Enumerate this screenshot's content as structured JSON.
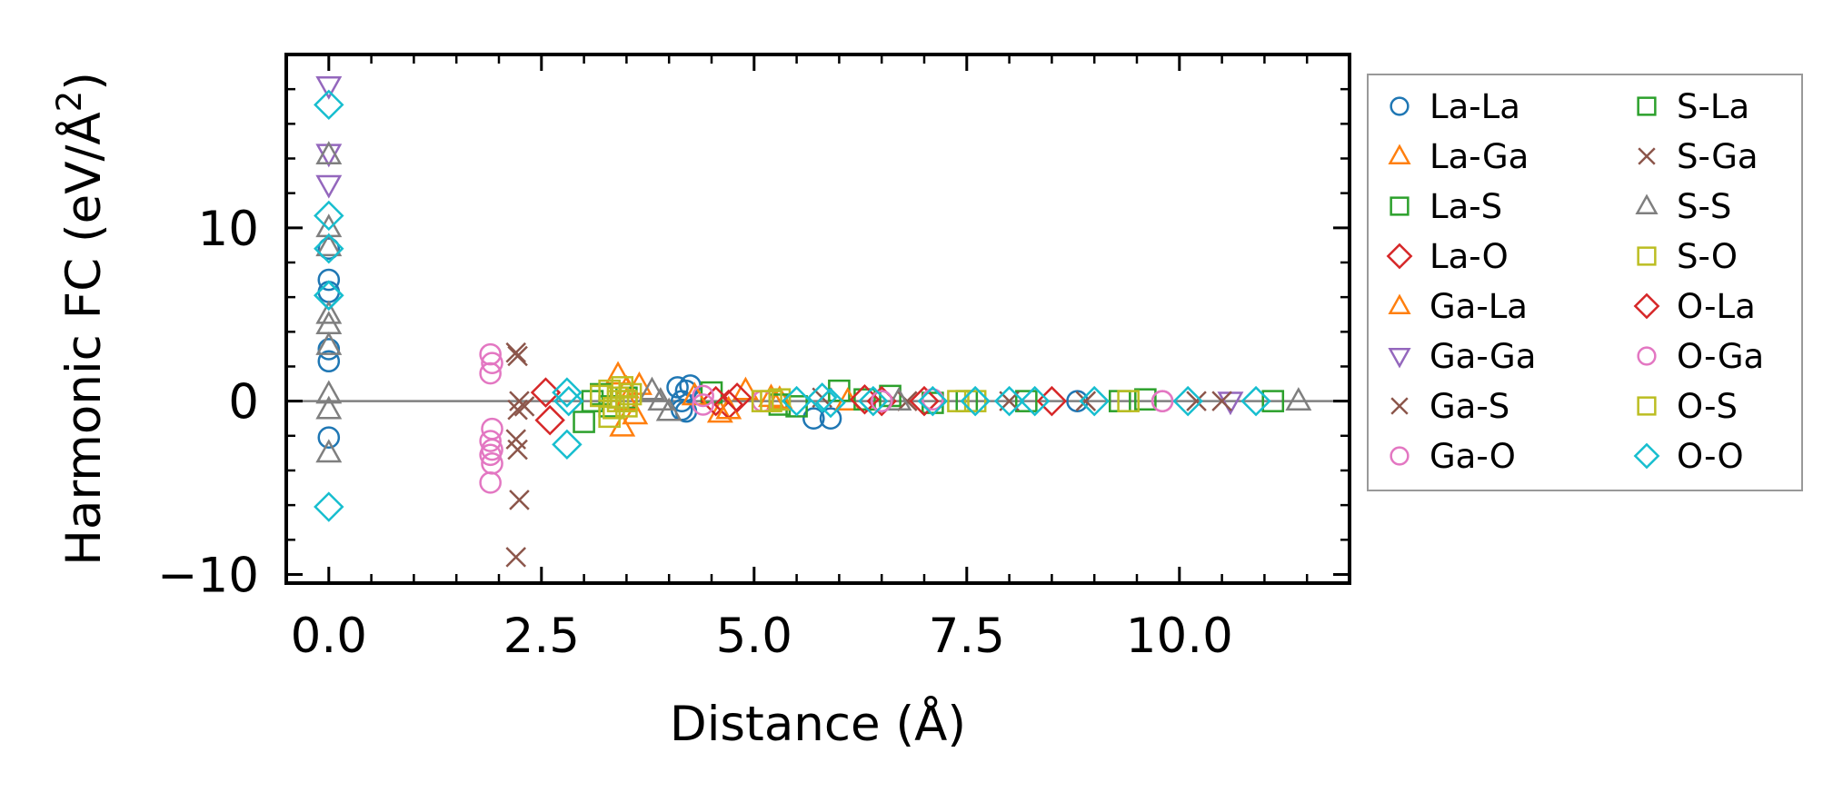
{
  "chart_data": {
    "type": "scatter",
    "xlabel": "Distance (Å)",
    "ylabel": "Harmonic FC (eV/Å²)",
    "xlim": [
      -0.5,
      12.0
    ],
    "ylim": [
      -10.5,
      20.0
    ],
    "x_ticks": [
      0.0,
      2.5,
      5.0,
      7.5,
      10.0
    ],
    "x_tick_labels": [
      "0.0",
      "2.5",
      "5.0",
      "7.5",
      "10.0"
    ],
    "y_ticks": [
      -10,
      0,
      10
    ],
    "y_tick_labels": [
      "−10",
      "0",
      "10"
    ],
    "zero_line": true,
    "grid": false,
    "legend_position": "outside-right",
    "series": [
      {
        "name": "La-La",
        "marker": "circle",
        "color": "#1f77b4",
        "x": [
          0,
          0,
          0,
          0,
          0,
          0,
          4.1,
          4.15,
          4.2,
          4.15,
          4.2,
          4.25,
          5.7,
          5.9,
          6.5,
          8.8
        ],
        "y": [
          8.8,
          7.0,
          6.3,
          2.3,
          3.0,
          -2.1,
          0.8,
          -0.5,
          0.6,
          0.0,
          -0.6,
          0.9,
          -1.0,
          -1.0,
          0.0,
          0.0
        ]
      },
      {
        "name": "La-Ga",
        "marker": "triangle-up",
        "color": "#ff7f0e",
        "x": [
          3.4,
          3.45,
          3.5,
          3.6,
          3.65,
          4.6,
          4.9,
          5.2
        ],
        "y": [
          1.5,
          -1.5,
          0.7,
          -0.8,
          0.9,
          -0.7,
          0.6,
          0.2
        ]
      },
      {
        "name": "La-S",
        "marker": "square",
        "color": "#2ca02c",
        "x": [
          3.0,
          3.1,
          3.3,
          3.5,
          4.5,
          5.5,
          6.0,
          6.6,
          7.1,
          8.2,
          9.6,
          11.1
        ],
        "y": [
          -1.2,
          0.0,
          -0.3,
          0.2,
          0.5,
          -0.3,
          0.6,
          0.3,
          -0.1,
          0.0,
          0.1,
          0.0
        ]
      },
      {
        "name": "La-O",
        "marker": "diamond",
        "color": "#d62728",
        "x": [
          2.55,
          2.6,
          4.55,
          4.7,
          6.5,
          7.0
        ],
        "y": [
          0.5,
          -1.1,
          0.0,
          -0.2,
          0.0,
          0.0
        ]
      },
      {
        "name": "Ga-La",
        "marker": "triangle-up",
        "color": "#ff7f0e",
        "x": [
          3.5,
          4.3,
          4.7,
          5.3,
          6.1
        ],
        "y": [
          0.0,
          0.3,
          -0.5,
          0.1,
          0.0
        ]
      },
      {
        "name": "Ga-Ga",
        "marker": "triangle-down",
        "color": "#9467bd",
        "x": [
          0,
          0,
          0,
          10.6
        ],
        "y": [
          18.2,
          14.3,
          12.5,
          0.0
        ]
      },
      {
        "name": "Ga-S",
        "marker": "x",
        "color": "#8c564b",
        "x": [
          2.2,
          2.22,
          2.24,
          2.2,
          2.22,
          2.24,
          2.2,
          2.22,
          6.8,
          8.9,
          10.5
        ],
        "y": [
          2.8,
          2.6,
          0.0,
          -2.2,
          -2.8,
          -5.7,
          -9.0,
          -0.5,
          0.0,
          0.0,
          0.0
        ]
      },
      {
        "name": "Ga-O",
        "marker": "circle",
        "color": "#e377c2",
        "x": [
          1.9,
          1.92,
          1.9,
          1.92,
          1.9,
          1.92,
          1.9,
          1.92,
          1.9,
          4.4,
          5.1,
          7.1,
          9.8
        ],
        "y": [
          2.7,
          2.2,
          1.6,
          -1.6,
          -2.3,
          -2.8,
          -3.1,
          -3.6,
          -4.7,
          0.3,
          0.0,
          0.1,
          0.0
        ]
      },
      {
        "name": "S-La",
        "marker": "square",
        "color": "#2ca02c",
        "x": [
          3.2,
          5.3,
          6.3,
          7.5,
          9.3
        ],
        "y": [
          0.4,
          -0.2,
          0.1,
          0.0,
          0.0
        ]
      },
      {
        "name": "S-Ga",
        "marker": "x",
        "color": "#8c564b",
        "x": [
          2.3,
          5.8,
          8.0,
          10.2
        ],
        "y": [
          -0.3,
          0.2,
          0.0,
          0.0
        ]
      },
      {
        "name": "S-S",
        "marker": "triangle-up",
        "color": "#7f7f7f",
        "x": [
          0,
          0,
          0,
          0,
          0,
          0,
          0,
          0,
          0,
          3.8,
          3.9,
          4.0,
          6.7,
          11.4
        ],
        "y": [
          14.2,
          10.0,
          8.9,
          5.0,
          4.4,
          3.2,
          0.4,
          -0.5,
          -3.0,
          0.6,
          0.0,
          -0.6,
          0.0,
          0.0
        ]
      },
      {
        "name": "S-O",
        "marker": "square",
        "color": "#bcbd22",
        "x": [
          3.2,
          3.3,
          3.35,
          3.4,
          3.45,
          3.5,
          3.55,
          3.3,
          3.4,
          5.2,
          5.3,
          7.4,
          9.4
        ],
        "y": [
          0.3,
          0.6,
          -0.4,
          0.2,
          0.8,
          -0.3,
          0.4,
          -0.9,
          0.0,
          0.0,
          0.1,
          0.0,
          0.0
        ]
      },
      {
        "name": "O-La",
        "marker": "diamond",
        "color": "#d62728",
        "x": [
          4.8,
          6.3,
          8.5
        ],
        "y": [
          0.2,
          0.1,
          0.0
        ]
      },
      {
        "name": "O-Ga",
        "marker": "circle",
        "color": "#e377c2",
        "x": [
          4.4,
          6.5,
          9.8
        ],
        "y": [
          -0.2,
          0.0,
          0.0
        ]
      },
      {
        "name": "O-S",
        "marker": "square",
        "color": "#bcbd22",
        "x": [
          3.5,
          5.1,
          7.6
        ],
        "y": [
          0.0,
          0.0,
          0.0
        ]
      },
      {
        "name": "O-O",
        "marker": "diamond",
        "color": "#17becf",
        "x": [
          0,
          0,
          0,
          0,
          0,
          0,
          2.8,
          2.82,
          2.8,
          5.5,
          5.8,
          5.9,
          6.4,
          7.1,
          7.6,
          8.0,
          8.3,
          9.0,
          10.1,
          10.9
        ],
        "y": [
          17.1,
          10.7,
          8.8,
          6.1,
          6.1,
          -6.1,
          0.5,
          0.0,
          -2.5,
          0.0,
          0.2,
          -0.1,
          0.0,
          0.0,
          0.0,
          0.0,
          0.0,
          0.0,
          0.0,
          0.0
        ]
      }
    ]
  }
}
